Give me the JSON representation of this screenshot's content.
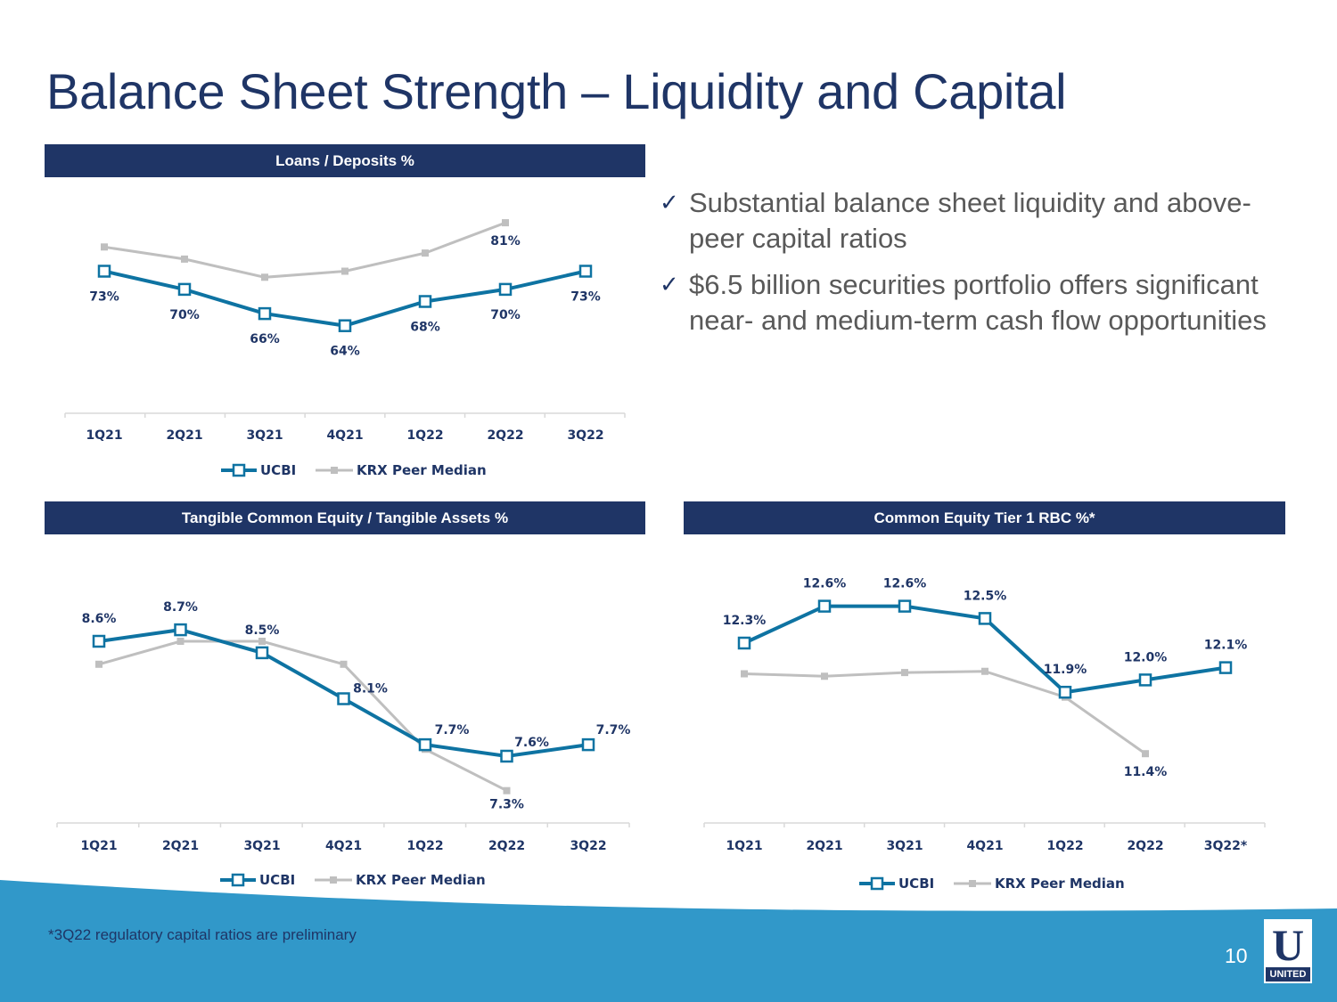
{
  "slide": {
    "title": "Balance Sheet Strength – Liquidity and Capital",
    "footnote": "*3Q22 regulatory capital ratios are preliminary",
    "page_number": "10",
    "logo_text": "UNITED",
    "logo_mark": "U"
  },
  "bullets": [
    "Substantial balance sheet liquidity and above-peer capital ratios",
    "$6.5 billion securities portfolio offers significant near- and medium-term cash flow opportunities"
  ],
  "colors": {
    "navy": "#1f3566",
    "ucbi": "#0e73a2",
    "peer": "#bfbfbf",
    "wave": "#3198c9",
    "wave_light": "#8cc6e3"
  },
  "chart_data": [
    {
      "id": "loans-deposits",
      "type": "line",
      "title": "Loans / Deposits %",
      "categories": [
        "1Q21",
        "2Q21",
        "3Q21",
        "4Q21",
        "1Q22",
        "2Q22",
        "3Q22"
      ],
      "ylim": [
        0,
        100
      ],
      "series": [
        {
          "name": "UCBI",
          "values": [
            73,
            70,
            66,
            64,
            68,
            70,
            73
          ],
          "labels": [
            "73%",
            "70%",
            "66%",
            "64%",
            "68%",
            "70%",
            "73%"
          ]
        },
        {
          "name": "KRX Peer Median",
          "values": [
            77,
            75,
            72,
            73,
            76,
            81,
            null
          ],
          "labels": [
            null,
            null,
            null,
            null,
            null,
            "81%",
            null
          ]
        }
      ],
      "legend": "bottom"
    },
    {
      "id": "tce-ta",
      "type": "line",
      "title": "Tangible Common Equity / Tangible Assets %",
      "categories": [
        "1Q21",
        "2Q21",
        "3Q21",
        "4Q21",
        "1Q22",
        "2Q22",
        "3Q22"
      ],
      "ylim": [
        5,
        10
      ],
      "series": [
        {
          "name": "UCBI",
          "values": [
            8.6,
            8.7,
            8.5,
            8.1,
            7.7,
            7.6,
            7.7
          ],
          "labels": [
            "8.6%",
            "8.7%",
            "8.5%",
            "8.1%",
            "7.7%",
            "7.6%",
            "7.7%"
          ]
        },
        {
          "name": "KRX Peer Median",
          "values": [
            8.4,
            8.6,
            8.6,
            8.4,
            7.66,
            7.3,
            null
          ],
          "labels": [
            null,
            null,
            null,
            null,
            null,
            "7.3%",
            null
          ]
        }
      ],
      "legend": "bottom"
    },
    {
      "id": "cet1",
      "type": "line",
      "title": "Common Equity Tier 1 RBC %*",
      "categories": [
        "1Q21",
        "2Q21",
        "3Q21",
        "4Q21",
        "1Q22",
        "2Q22",
        "3Q22*"
      ],
      "ylim": [
        10,
        13
      ],
      "series": [
        {
          "name": "UCBI",
          "values": [
            12.3,
            12.6,
            12.6,
            12.5,
            11.9,
            12.0,
            12.1
          ],
          "labels": [
            "12.3%",
            "12.6%",
            "12.6%",
            "12.5%",
            "11.9%",
            "12.0%",
            "12.1%"
          ]
        },
        {
          "name": "KRX Peer Median",
          "values": [
            12.05,
            12.03,
            12.06,
            12.07,
            11.86,
            11.4,
            null
          ],
          "labels": [
            null,
            null,
            null,
            null,
            null,
            "11.4%",
            null
          ]
        }
      ],
      "legend": "bottom"
    }
  ]
}
